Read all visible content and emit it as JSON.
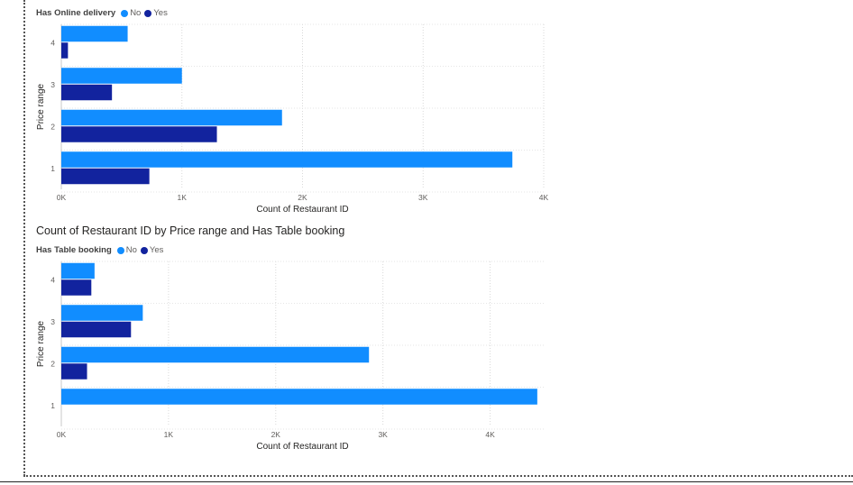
{
  "chart_data": [
    {
      "type": "bar",
      "orientation": "horizontal",
      "title": "",
      "legend_title": "Has Online delivery",
      "legend_position": "top-left",
      "categories": [
        "1",
        "2",
        "3",
        "4"
      ],
      "series": [
        {
          "name": "No",
          "color": "#118DFF",
          "values": [
            3740,
            1830,
            1000,
            550
          ]
        },
        {
          "name": "Yes",
          "color": "#12239E",
          "values": [
            730,
            1290,
            420,
            55
          ]
        }
      ],
      "xlabel": "Count of Restaurant ID",
      "ylabel": "Price range",
      "xlim": [
        0,
        4000
      ],
      "xticks": [
        0,
        1000,
        2000,
        3000,
        4000
      ],
      "xtick_labels": [
        "0K",
        "1K",
        "2K",
        "3K",
        "4K"
      ],
      "grid": true
    },
    {
      "type": "bar",
      "orientation": "horizontal",
      "title": "Count of Restaurant ID by Price range and Has Table booking",
      "legend_title": "Has Table booking",
      "legend_position": "top-left",
      "categories": [
        "1",
        "2",
        "3",
        "4"
      ],
      "series": [
        {
          "name": "No",
          "color": "#118DFF",
          "values": [
            4440,
            2870,
            760,
            310
          ]
        },
        {
          "name": "Yes",
          "color": "#12239E",
          "values": [
            0,
            240,
            650,
            280
          ]
        }
      ],
      "xlabel": "Count of Restaurant ID",
      "ylabel": "Price range",
      "xlim": [
        0,
        4500
      ],
      "xticks": [
        0,
        1000,
        2000,
        3000,
        4000
      ],
      "xtick_labels": [
        "0K",
        "1K",
        "2K",
        "3K",
        "4K"
      ],
      "grid": true
    }
  ]
}
